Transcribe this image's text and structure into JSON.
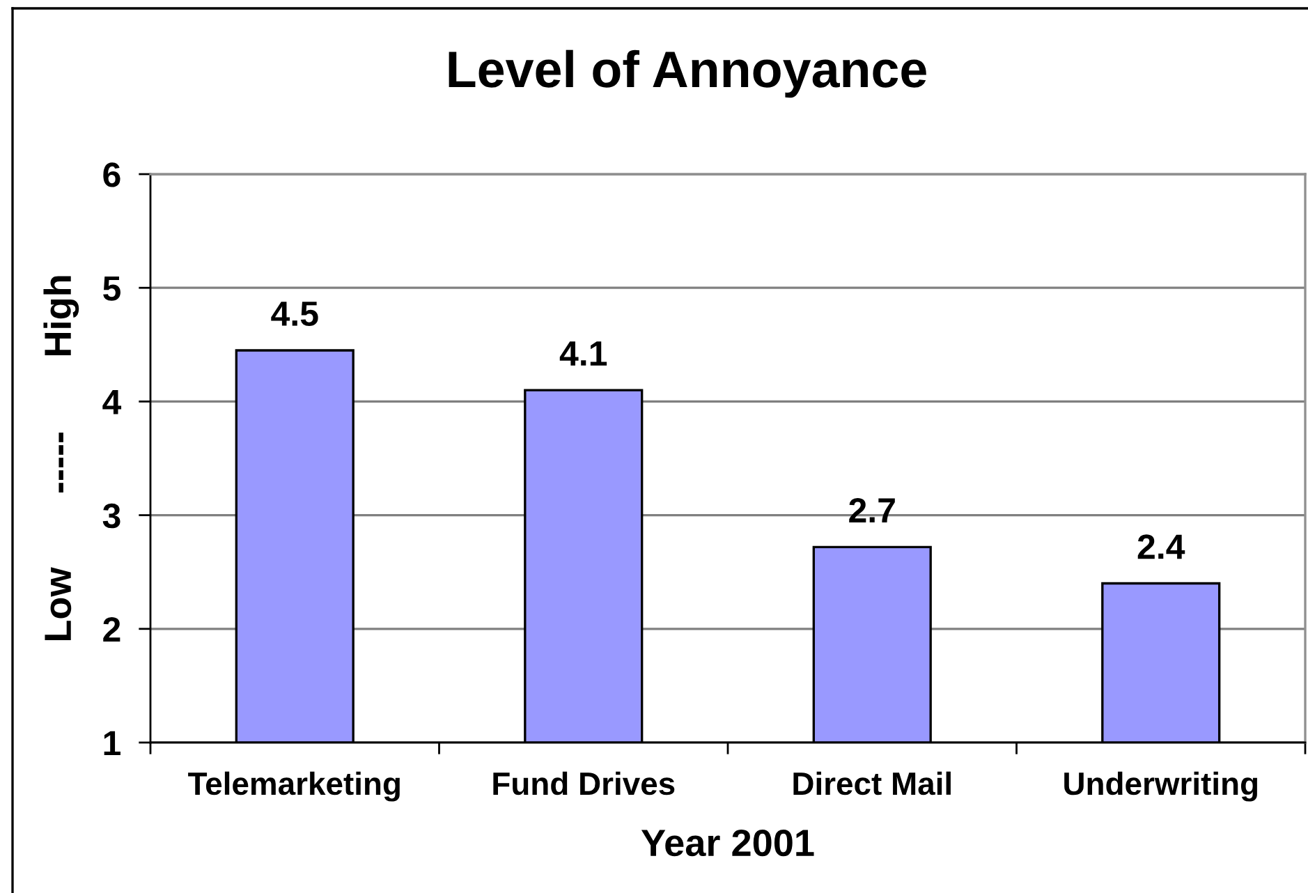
{
  "chart_data": {
    "type": "bar",
    "title": "Level of Annoyance",
    "xlabel": "Year 2001",
    "ylabel": "Low       -----       High",
    "categories": [
      "Telemarketing",
      "Fund Drives",
      "Direct Mail",
      "Underwriting"
    ],
    "values": [
      4.45,
      4.1,
      2.72,
      2.4
    ],
    "value_labels": [
      "4.5",
      "4.1",
      "2.7",
      "2.4"
    ],
    "color": "#9999ff",
    "ylim": [
      1,
      6
    ],
    "yticks": [
      1,
      2,
      3,
      4,
      5,
      6
    ],
    "grid": "y",
    "legend": false
  }
}
